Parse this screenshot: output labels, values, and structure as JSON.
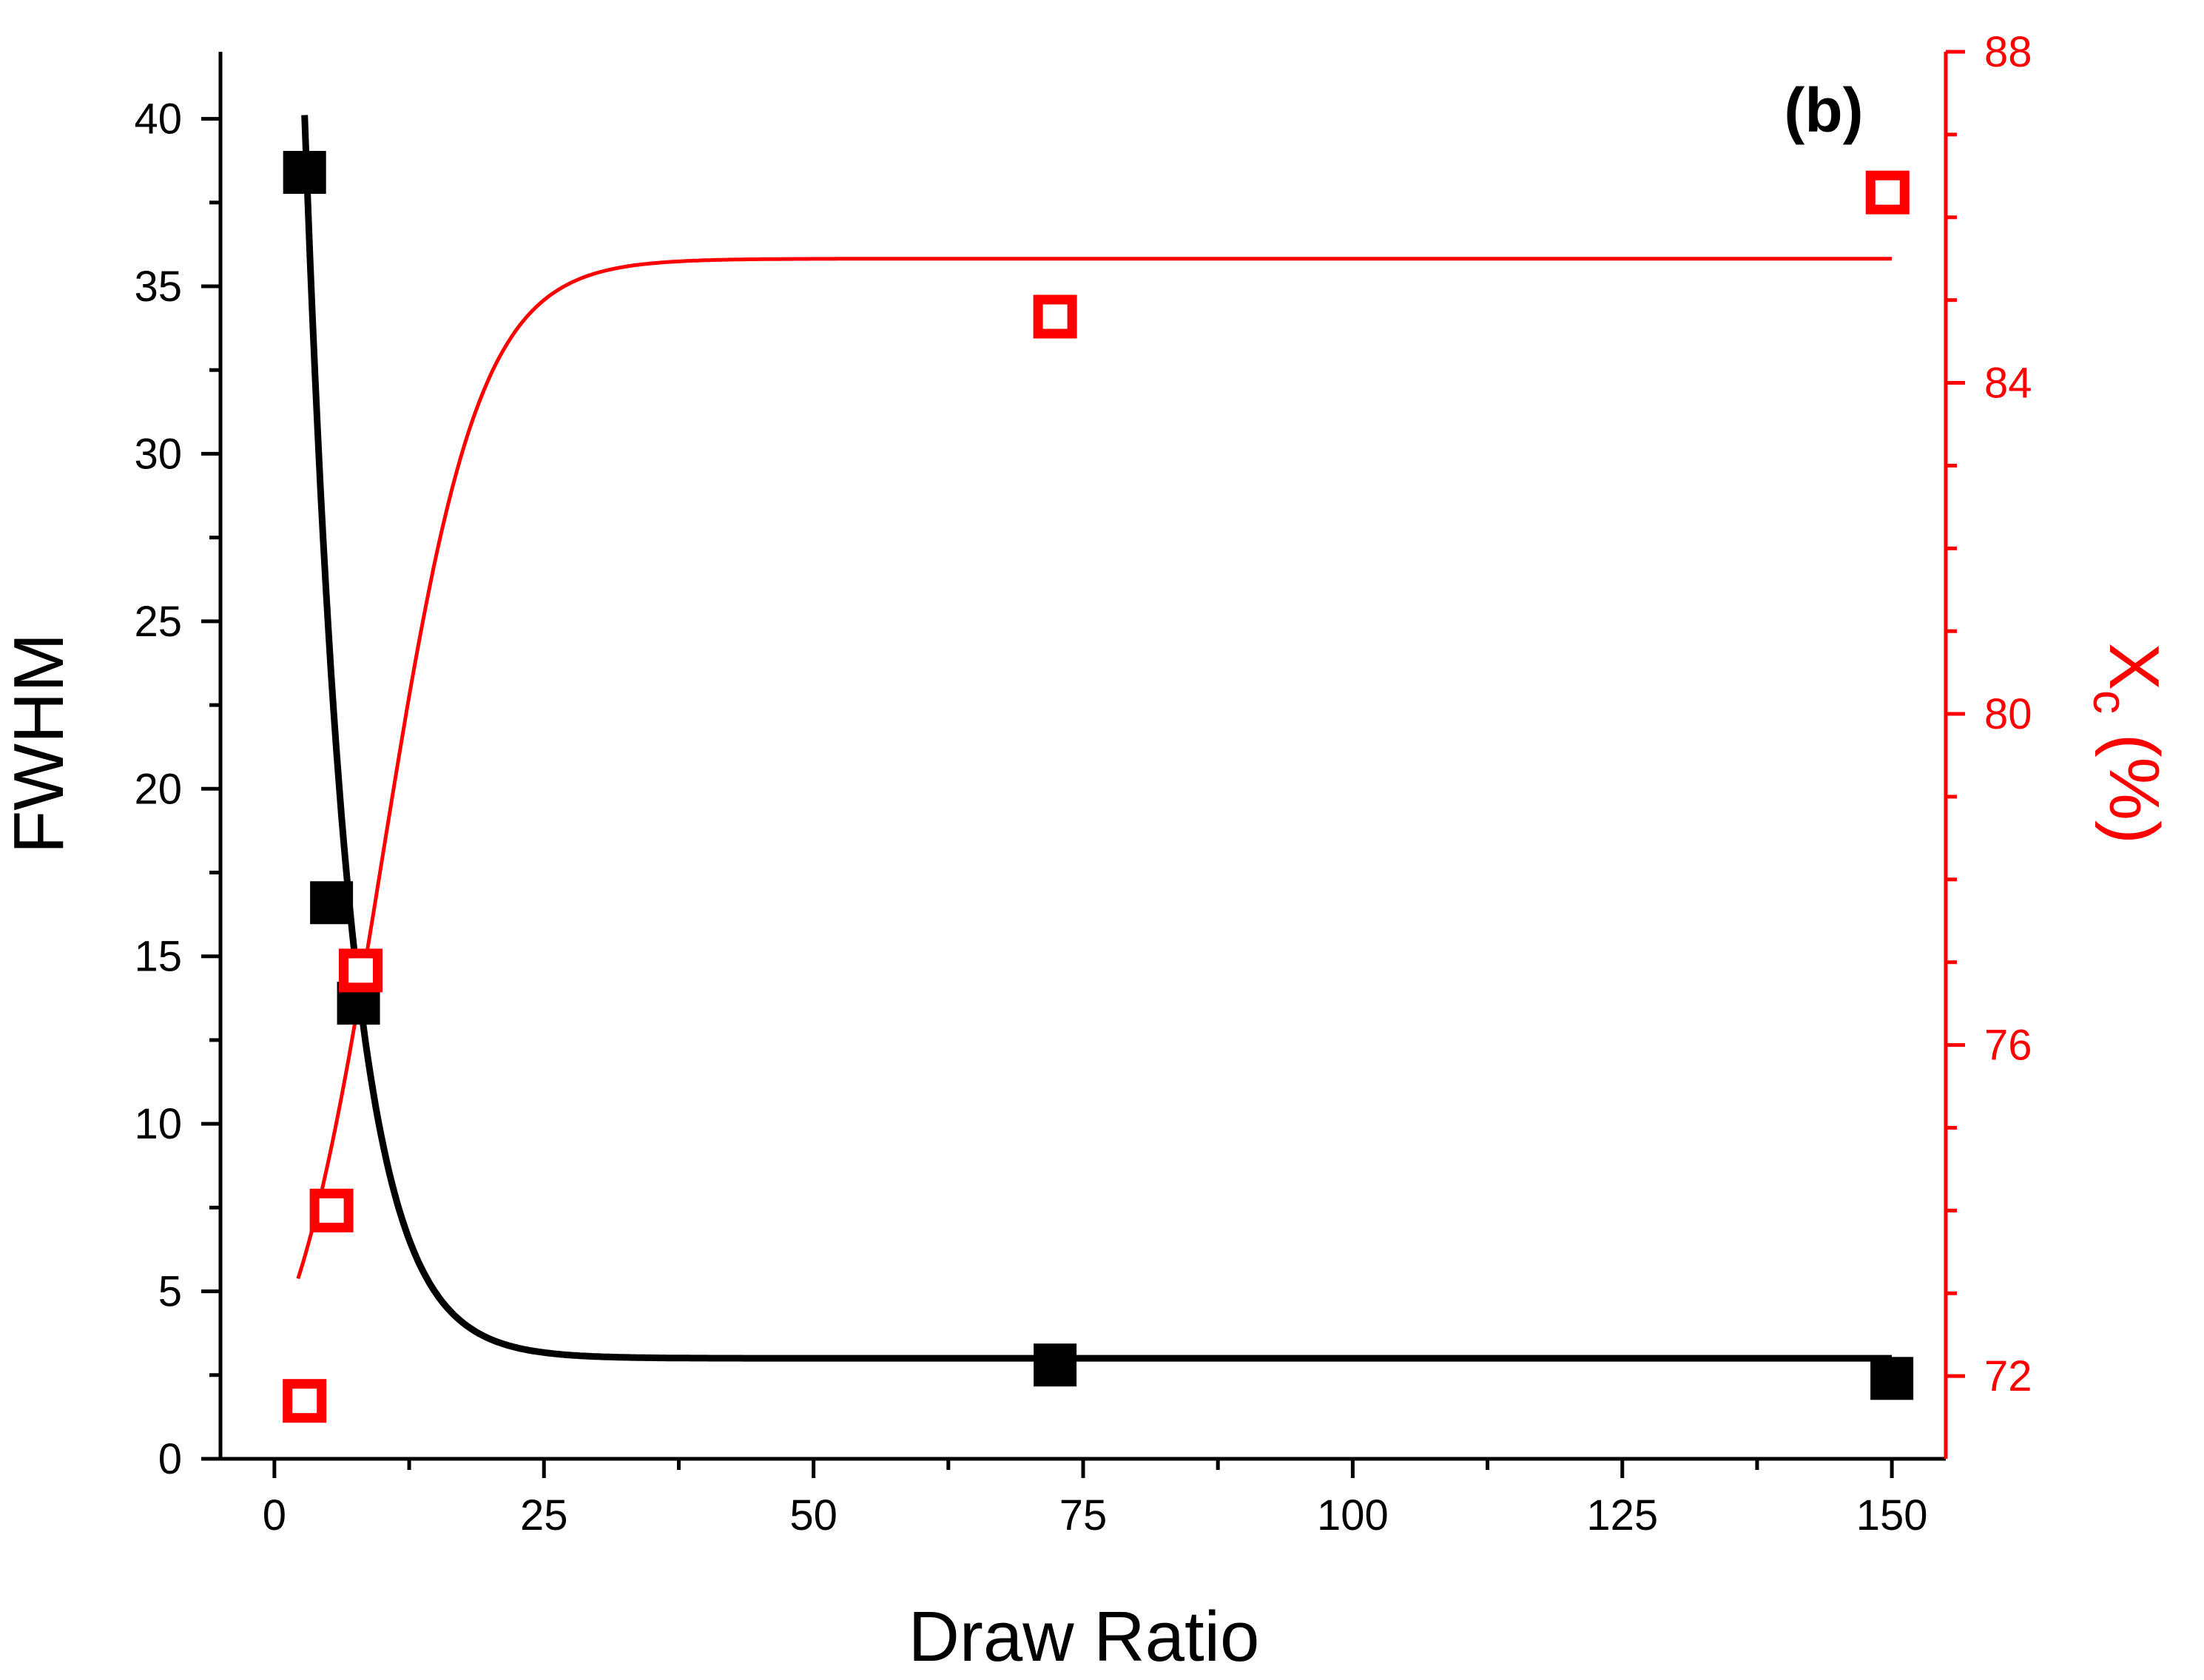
{
  "chart_data": {
    "type": "scatter",
    "panel_label": "(b)",
    "xlabel": "Draw Ratio",
    "ylabel_left": "FWHM",
    "ylabel_right_main": "X",
    "ylabel_right_sub": "c",
    "ylabel_right_tail": " (%)",
    "xlim": [
      -5,
      155
    ],
    "ylim_left": [
      0,
      42
    ],
    "ylim_right": [
      71,
      88
    ],
    "x_ticks": [
      0,
      25,
      50,
      75,
      100,
      125,
      150
    ],
    "x_tick_labels": [
      "0",
      "25",
      "50",
      "75",
      "100",
      "125",
      "150"
    ],
    "y_left_ticks": [
      0,
      5,
      10,
      15,
      20,
      25,
      30,
      35,
      40
    ],
    "y_left_tick_labels": [
      "0",
      "5",
      "10",
      "15",
      "20",
      "25",
      "30",
      "35",
      "40"
    ],
    "y_right_ticks": [
      72,
      76,
      80,
      84,
      88
    ],
    "y_right_tick_labels": [
      "72",
      "76",
      "80",
      "84",
      "88"
    ],
    "grid": false,
    "colors": {
      "left_series": "#000000",
      "right_series": "#ff0000",
      "axes": "#000000"
    },
    "series": [
      {
        "axis": "left",
        "marker": "filled-square",
        "x": [
          2.8,
          5.3,
          7.8,
          72.4,
          150.0
        ],
        "y": [
          38.4,
          16.6,
          13.6,
          2.8,
          2.4
        ],
        "fit": {
          "model": "exp-decay",
          "y0": 3.0,
          "A": 73.1,
          "t": 4.13,
          "x_from": 2.8,
          "x_to": 150
        }
      },
      {
        "axis": "right",
        "marker": "open-square",
        "x": [
          2.8,
          5.3,
          8.0,
          72.4,
          149.6
        ],
        "y": [
          71.7,
          74.0,
          76.9,
          84.8,
          86.3
        ],
        "fit": {
          "model": "sigmoid",
          "A1": 71.0,
          "A2": 85.5,
          "x0": 10.0,
          "dx": 4.5,
          "x_from": 2.2,
          "x_to": 150
        }
      }
    ]
  }
}
